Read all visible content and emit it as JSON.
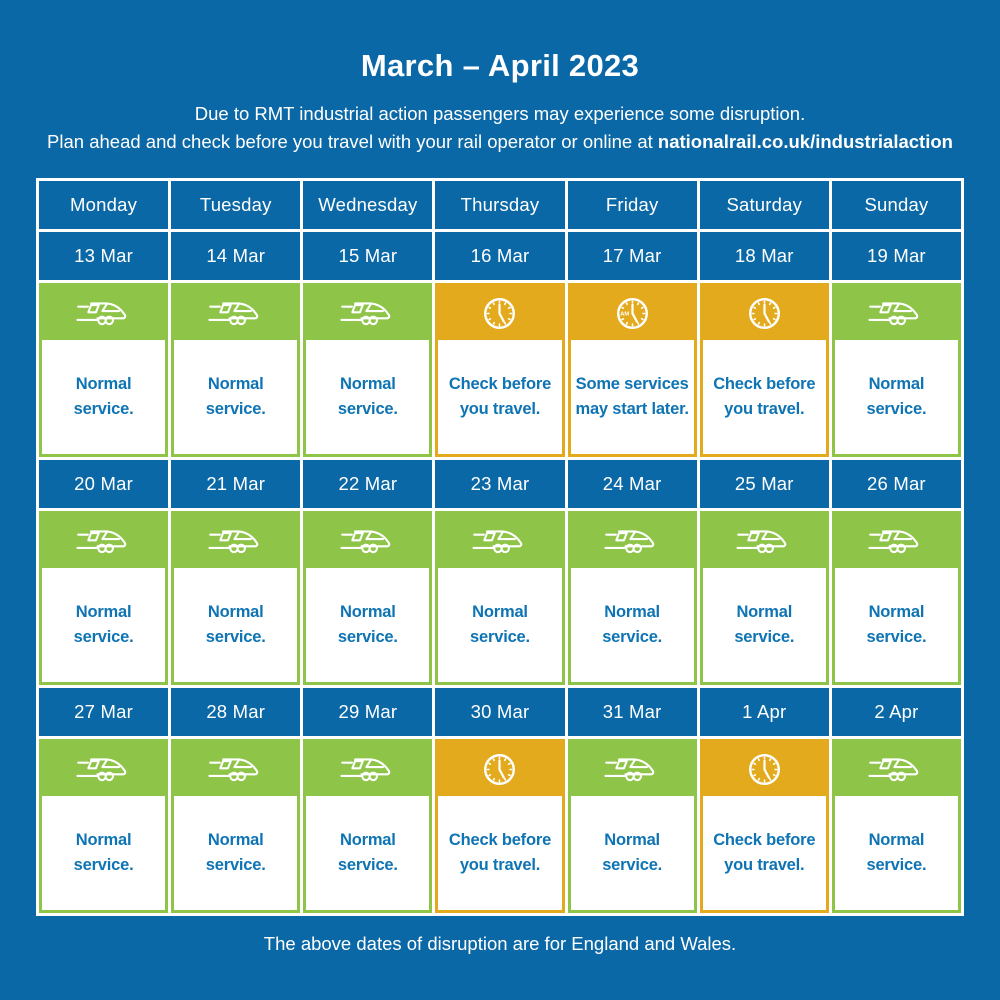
{
  "header": {
    "title": "March – April 2023",
    "subtitle_line1": "Due to RMT industrial action passengers may experience some disruption.",
    "subtitle_line2_prefix": "Plan ahead and check before you travel with your rail operator or online at ",
    "subtitle_line2_bold": "nationalrail.co.uk/industrialaction"
  },
  "calendar": {
    "day_headers": [
      "Monday",
      "Tuesday",
      "Wednesday",
      "Thursday",
      "Friday",
      "Saturday",
      "Sunday"
    ],
    "weeks": [
      {
        "days": [
          {
            "date": "13 Mar",
            "status": "normal",
            "icon": "train-icon",
            "label": "Normal service.",
            "label_lines": [
              "Normal",
              "service."
            ]
          },
          {
            "date": "14 Mar",
            "status": "normal",
            "icon": "train-icon",
            "label": "Normal service.",
            "label_lines": [
              "Normal",
              "service."
            ]
          },
          {
            "date": "15 Mar",
            "status": "normal",
            "icon": "train-icon",
            "label": "Normal service.",
            "label_lines": [
              "Normal",
              "service."
            ]
          },
          {
            "date": "16 Mar",
            "status": "disruption",
            "icon": "clock-icon",
            "label": "Check before you travel.",
            "label_lines": [
              "Check before",
              "you travel."
            ]
          },
          {
            "date": "17 Mar",
            "status": "disruption",
            "icon": "clock-am-icon",
            "label": "Some services may start later.",
            "label_lines": [
              "Some services",
              "may start later."
            ]
          },
          {
            "date": "18 Mar",
            "status": "disruption",
            "icon": "clock-icon",
            "label": "Check before you travel.",
            "label_lines": [
              "Check before",
              "you travel."
            ]
          },
          {
            "date": "19 Mar",
            "status": "normal",
            "icon": "train-icon",
            "label": "Normal service.",
            "label_lines": [
              "Normal",
              "service."
            ]
          }
        ]
      },
      {
        "days": [
          {
            "date": "20 Mar",
            "status": "normal",
            "icon": "train-icon",
            "label": "Normal service.",
            "label_lines": [
              "Normal",
              "service."
            ]
          },
          {
            "date": "21 Mar",
            "status": "normal",
            "icon": "train-icon",
            "label": "Normal service.",
            "label_lines": [
              "Normal",
              "service."
            ]
          },
          {
            "date": "22 Mar",
            "status": "normal",
            "icon": "train-icon",
            "label": "Normal service.",
            "label_lines": [
              "Normal",
              "service."
            ]
          },
          {
            "date": "23 Mar",
            "status": "normal",
            "icon": "train-icon",
            "label": "Normal service.",
            "label_lines": [
              "Normal",
              "service."
            ]
          },
          {
            "date": "24 Mar",
            "status": "normal",
            "icon": "train-icon",
            "label": "Normal service.",
            "label_lines": [
              "Normal",
              "service."
            ]
          },
          {
            "date": "25 Mar",
            "status": "normal",
            "icon": "train-icon",
            "label": "Normal service.",
            "label_lines": [
              "Normal",
              "service."
            ]
          },
          {
            "date": "26 Mar",
            "status": "normal",
            "icon": "train-icon",
            "label": "Normal service.",
            "label_lines": [
              "Normal",
              "service."
            ]
          }
        ]
      },
      {
        "days": [
          {
            "date": "27 Mar",
            "status": "normal",
            "icon": "train-icon",
            "label": "Normal service.",
            "label_lines": [
              "Normal",
              "service."
            ]
          },
          {
            "date": "28 Mar",
            "status": "normal",
            "icon": "train-icon",
            "label": "Normal service.",
            "label_lines": [
              "Normal",
              "service."
            ]
          },
          {
            "date": "29 Mar",
            "status": "normal",
            "icon": "train-icon",
            "label": "Normal service.",
            "label_lines": [
              "Normal",
              "service."
            ]
          },
          {
            "date": "30 Mar",
            "status": "disruption",
            "icon": "clock-icon",
            "label": "Check before you travel.",
            "label_lines": [
              "Check before",
              "you travel."
            ]
          },
          {
            "date": "31 Mar",
            "status": "normal",
            "icon": "train-icon",
            "label": "Normal service.",
            "label_lines": [
              "Normal",
              "service."
            ]
          },
          {
            "date": "1 Apr",
            "status": "disruption",
            "icon": "clock-icon",
            "label": "Check before you travel.",
            "label_lines": [
              "Check before",
              "you travel."
            ]
          },
          {
            "date": "2 Apr",
            "status": "normal",
            "icon": "train-icon",
            "label": "Normal service.",
            "label_lines": [
              "Normal",
              "service."
            ]
          }
        ]
      }
    ]
  },
  "footer": {
    "note": "The above dates of disruption are for England and Wales."
  },
  "colors": {
    "background_blue": "#0b68a6",
    "cell_blue": "#0b68a6",
    "normal_green": "#8ec549",
    "disruption_yellow": "#e3aa1e",
    "status_text_blue": "#0e74b4",
    "grid_line_white": "#ffffff"
  }
}
